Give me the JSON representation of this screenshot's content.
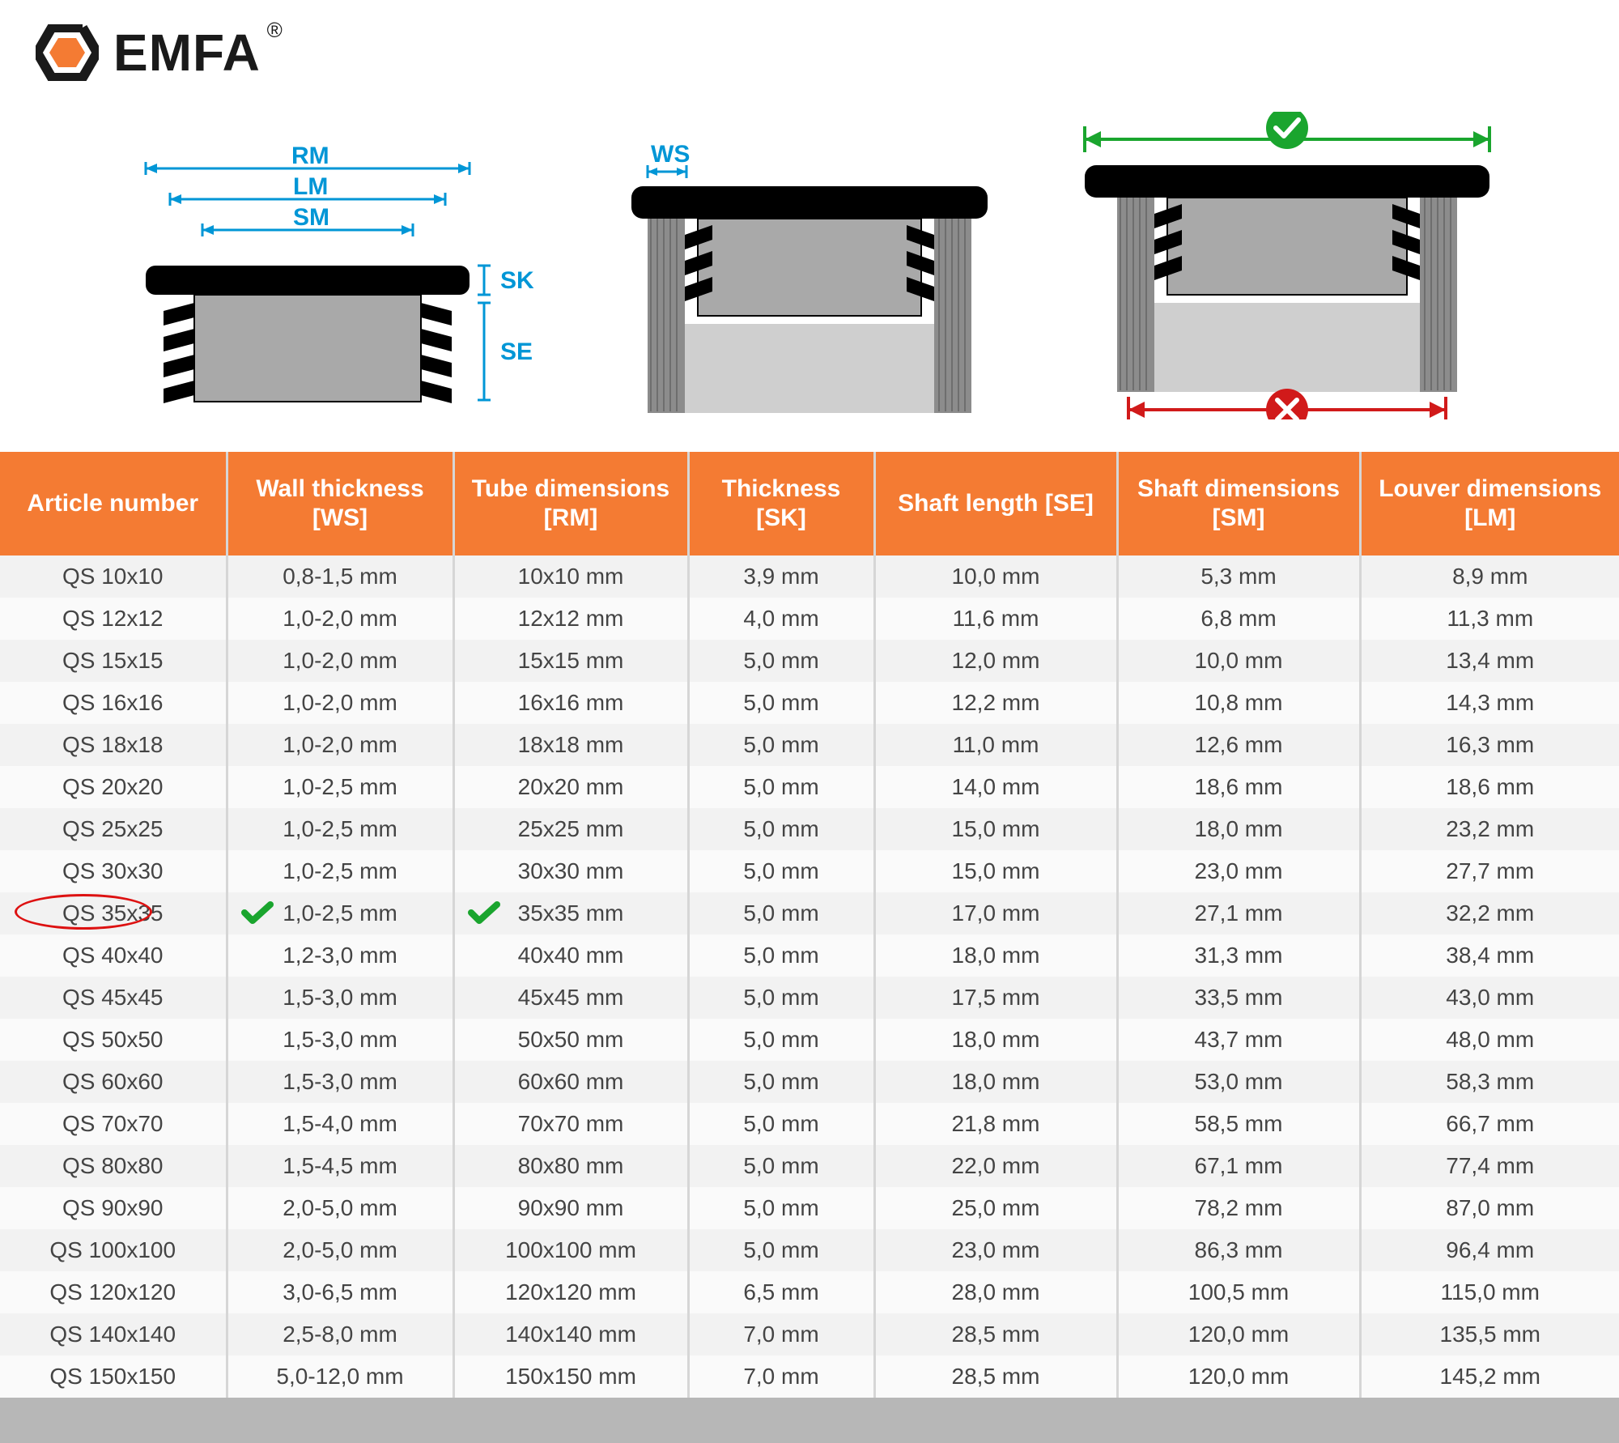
{
  "brand": {
    "name": "EMFA",
    "reg_mark": "®",
    "hex_accent": "#f47b33",
    "hex_dark": "#1a1a1a"
  },
  "diagram_labels": {
    "rm": "RM",
    "lm": "LM",
    "sm": "SM",
    "sk": "SK",
    "se": "SE",
    "ws": "WS"
  },
  "table": {
    "header_color": "#f47b33",
    "header_text_color": "#ffffff",
    "row_odd_color": "#f2f2f2",
    "row_even_color": "#fafafa",
    "grid_color": "#d6d6d6",
    "highlight_color": "#dd1111",
    "check_color": "#1aa52e",
    "columns": [
      "Article number",
      "Wall thickness [WS]",
      "Tube dimensions [RM]",
      "Thickness [SK]",
      "Shaft length [SE]",
      "Shaft dimensions [SM]",
      "Louver dimensions [LM]"
    ],
    "highlighted_row_index": 8,
    "checked_columns": [
      1,
      2
    ],
    "rows": [
      [
        "QS 10x10",
        "0,8-1,5 mm",
        "10x10 mm",
        "3,9 mm",
        "10,0 mm",
        "5,3 mm",
        "8,9 mm"
      ],
      [
        "QS 12x12",
        "1,0-2,0 mm",
        "12x12 mm",
        "4,0 mm",
        "11,6 mm",
        "6,8 mm",
        "11,3 mm"
      ],
      [
        "QS 15x15",
        "1,0-2,0 mm",
        "15x15 mm",
        "5,0 mm",
        "12,0 mm",
        "10,0 mm",
        "13,4 mm"
      ],
      [
        "QS 16x16",
        "1,0-2,0 mm",
        "16x16 mm",
        "5,0 mm",
        "12,2 mm",
        "10,8 mm",
        "14,3 mm"
      ],
      [
        "QS 18x18",
        "1,0-2,0 mm",
        "18x18 mm",
        "5,0 mm",
        "11,0 mm",
        "12,6 mm",
        "16,3 mm"
      ],
      [
        "QS 20x20",
        "1,0-2,5 mm",
        "20x20 mm",
        "5,0 mm",
        "14,0 mm",
        "18,6 mm",
        "18,6 mm"
      ],
      [
        "QS 25x25",
        "1,0-2,5 mm",
        "25x25 mm",
        "5,0 mm",
        "15,0 mm",
        "18,0 mm",
        "23,2 mm"
      ],
      [
        "QS 30x30",
        "1,0-2,5 mm",
        "30x30 mm",
        "5,0 mm",
        "15,0 mm",
        "23,0 mm",
        "27,7 mm"
      ],
      [
        "QS 35x35",
        "1,0-2,5 mm",
        "35x35 mm",
        "5,0 mm",
        "17,0 mm",
        "27,1 mm",
        "32,2 mm"
      ],
      [
        "QS 40x40",
        "1,2-3,0 mm",
        "40x40 mm",
        "5,0 mm",
        "18,0 mm",
        "31,3 mm",
        "38,4 mm"
      ],
      [
        "QS 45x45",
        "1,5-3,0 mm",
        "45x45 mm",
        "5,0 mm",
        "17,5 mm",
        "33,5 mm",
        "43,0 mm"
      ],
      [
        "QS 50x50",
        "1,5-3,0 mm",
        "50x50 mm",
        "5,0 mm",
        "18,0 mm",
        "43,7 mm",
        "48,0 mm"
      ],
      [
        "QS 60x60",
        "1,5-3,0 mm",
        "60x60 mm",
        "5,0 mm",
        "18,0 mm",
        "53,0 mm",
        "58,3 mm"
      ],
      [
        "QS 70x70",
        "1,5-4,0 mm",
        "70x70 mm",
        "5,0 mm",
        "21,8 mm",
        "58,5 mm",
        "66,7 mm"
      ],
      [
        "QS 80x80",
        "1,5-4,5 mm",
        "80x80 mm",
        "5,0 mm",
        "22,0 mm",
        "67,1 mm",
        "77,4 mm"
      ],
      [
        "QS 90x90",
        "2,0-5,0 mm",
        "90x90 mm",
        "5,0 mm",
        "25,0 mm",
        "78,2 mm",
        "87,0 mm"
      ],
      [
        "QS 100x100",
        "2,0-5,0 mm",
        "100x100 mm",
        "5,0 mm",
        "23,0 mm",
        "86,3 mm",
        "96,4 mm"
      ],
      [
        "QS 120x120",
        "3,0-6,5 mm",
        "120x120 mm",
        "6,5 mm",
        "28,0 mm",
        "100,5 mm",
        "115,0 mm"
      ],
      [
        "QS 140x140",
        "2,5-8,0 mm",
        "140x140 mm",
        "7,0 mm",
        "28,5 mm",
        "120,0 mm",
        "135,5 mm"
      ],
      [
        "QS 150x150",
        "5,0-12,0 mm",
        "150x150 mm",
        "7,0 mm",
        "28,5 mm",
        "120,0 mm",
        "145,2 mm"
      ]
    ]
  },
  "diagram_colors": {
    "dim_line": "#0096d6",
    "cap_black": "#000000",
    "tube_grey": "#a9a9a9",
    "tube_light": "#bfbfbf",
    "good_green": "#1aa52e",
    "bad_red": "#d11a1a"
  }
}
